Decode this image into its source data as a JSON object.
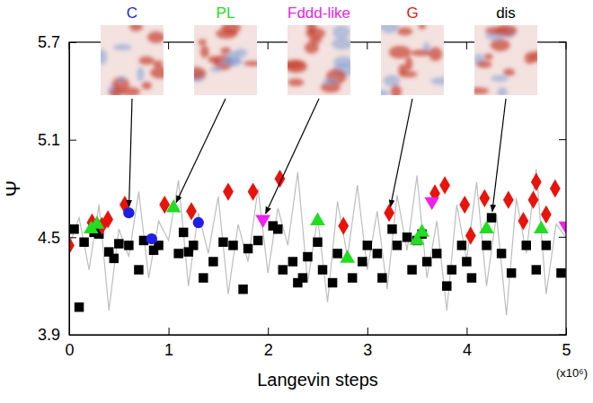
{
  "chart_data": {
    "type": "scatter",
    "xlabel": "Langevin steps",
    "ylabel": "Ψ",
    "x_multiplier_label": "(x10⁶)",
    "xlim": [
      0,
      5
    ],
    "ylim": [
      3.9,
      5.7
    ],
    "xticks": [
      0,
      1,
      2,
      3,
      4,
      5
    ],
    "yticks": [
      3.9,
      4.5,
      5.1,
      5.7
    ],
    "grid": false,
    "series": [
      {
        "type": "line",
        "color": "#bdbdbd",
        "line_style": "solid",
        "x": [
          0,
          0.1,
          0.2,
          0.3,
          0.4,
          0.5,
          0.6,
          0.7,
          0.8,
          0.9,
          1.0,
          1.1,
          1.2,
          1.3,
          1.4,
          1.5,
          1.6,
          1.7,
          1.8,
          1.9,
          2.0,
          2.1,
          2.2,
          2.3,
          2.4,
          2.5,
          2.6,
          2.7,
          2.8,
          2.9,
          3.0,
          3.1,
          3.2,
          3.3,
          3.4,
          3.5,
          3.6,
          3.7,
          3.8,
          3.9,
          4.0,
          4.1,
          4.2,
          4.3,
          4.4,
          4.5,
          4.6,
          4.7,
          4.8,
          4.9,
          5.0
        ],
        "values": [
          4.45,
          4.62,
          4.3,
          4.7,
          4.05,
          4.55,
          4.38,
          4.78,
          4.25,
          4.6,
          4.48,
          4.85,
          4.2,
          4.65,
          4.4,
          4.75,
          4.15,
          4.58,
          4.35,
          4.8,
          4.28,
          4.68,
          4.45,
          4.9,
          4.22,
          4.62,
          4.1,
          4.72,
          4.38,
          4.82,
          4.3,
          4.66,
          4.18,
          4.76,
          4.42,
          4.88,
          4.25,
          4.6,
          4.05,
          4.7,
          4.36,
          4.84,
          4.2,
          4.64,
          4.02,
          4.74,
          4.4,
          4.92,
          4.15,
          4.58,
          4.5
        ]
      },
      {
        "type": "scatter",
        "color": "#000000",
        "marker": "square",
        "x": [
          0.05,
          0.1,
          0.15,
          0.25,
          0.3,
          0.4,
          0.45,
          0.5,
          0.6,
          0.7,
          0.75,
          0.85,
          0.9,
          1.1,
          1.15,
          1.2,
          1.25,
          1.35,
          1.45,
          1.55,
          1.65,
          1.75,
          1.8,
          1.9,
          2.05,
          2.1,
          2.15,
          2.25,
          2.3,
          2.35,
          2.4,
          2.5,
          2.55,
          2.65,
          2.7,
          2.85,
          2.95,
          3.0,
          3.1,
          3.15,
          3.25,
          3.3,
          3.4,
          3.45,
          3.5,
          3.55,
          3.6,
          3.7,
          3.8,
          3.85,
          3.95,
          4.0,
          4.05,
          4.2,
          4.25,
          4.35,
          4.45,
          4.6,
          4.7,
          4.8,
          4.95
        ],
        "values": [
          4.55,
          4.07,
          4.47,
          4.53,
          4.52,
          4.41,
          4.37,
          4.46,
          4.45,
          4.3,
          4.48,
          4.42,
          4.45,
          4.4,
          4.53,
          4.41,
          4.45,
          4.25,
          4.35,
          4.47,
          4.45,
          4.18,
          4.43,
          4.48,
          4.57,
          4.55,
          4.3,
          4.35,
          4.22,
          4.25,
          4.38,
          4.47,
          4.3,
          4.22,
          4.4,
          4.25,
          4.35,
          4.45,
          4.4,
          4.25,
          4.55,
          4.45,
          4.5,
          4.3,
          4.48,
          4.52,
          4.35,
          4.4,
          4.2,
          4.3,
          4.45,
          4.35,
          4.25,
          4.45,
          4.62,
          4.4,
          4.28,
          4.45,
          4.3,
          4.45,
          4.28
        ]
      },
      {
        "type": "scatter",
        "color": "#e8140c",
        "marker": "diamond",
        "x": [
          0,
          0.23,
          0.33,
          0.39,
          0.56,
          0.96,
          1.23,
          1.6,
          1.85,
          2.12,
          2.76,
          3.22,
          3.68,
          3.78,
          3.98,
          4.04,
          4.18,
          4.42,
          4.57,
          4.67,
          4.7,
          4.8,
          4.89
        ],
        "values": [
          4.45,
          4.59,
          4.57,
          4.61,
          4.7,
          4.7,
          4.66,
          4.78,
          4.78,
          4.86,
          4.57,
          4.65,
          4.77,
          4.82,
          4.7,
          4.51,
          4.74,
          4.73,
          4.6,
          4.73,
          4.84,
          4.64,
          4.8
        ]
      },
      {
        "type": "scatter",
        "color": "#22dd22",
        "marker": "triangle",
        "x": [
          0.22,
          0.28,
          1.05,
          2.5,
          2.8,
          3.5,
          3.55,
          4.2,
          4.75
        ],
        "values": [
          4.55,
          4.58,
          4.68,
          4.6,
          4.37,
          4.48,
          4.53,
          4.55,
          4.55
        ]
      },
      {
        "type": "scatter",
        "color": "#1f1fe6",
        "marker": "circle",
        "x": [
          0.6,
          0.83,
          1.3
        ],
        "values": [
          4.65,
          4.49,
          4.59
        ]
      },
      {
        "type": "scatter",
        "color": "#ee22ee",
        "marker": "triangle-down",
        "x": [
          1.95,
          3.65,
          5.0
        ],
        "values": [
          4.61,
          4.72,
          4.57
        ]
      }
    ],
    "annotations": [
      {
        "text": "C",
        "color": "#1f1fe6",
        "x": 0.6,
        "y": 4.65
      },
      {
        "text": "PL",
        "color": "#22dd22",
        "x": 1.05,
        "y": 4.68
      },
      {
        "text": "Fddd-like",
        "color": "#ee22ee",
        "x": 1.95,
        "y": 4.61
      },
      {
        "text": "G",
        "color": "#e8140c",
        "x": 3.22,
        "y": 4.65
      },
      {
        "text": "dis",
        "color": "#000000",
        "x": 4.25,
        "y": 4.62
      }
    ]
  }
}
